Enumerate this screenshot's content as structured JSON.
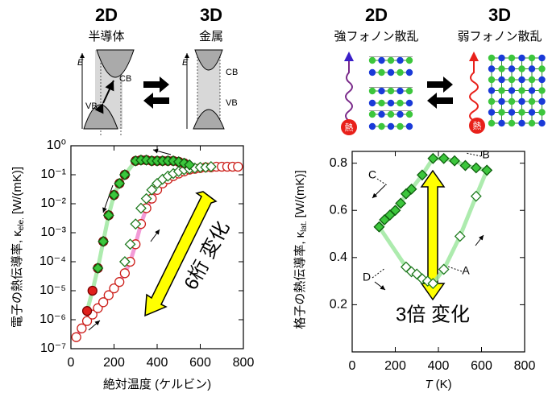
{
  "header": {
    "left": [
      "2D",
      "半導体",
      "3D",
      "金属"
    ],
    "right": [
      "2D",
      "強フォノン散乱",
      "3D",
      "弱フォノン散乱"
    ]
  },
  "band_labels": [
    "E",
    "CB",
    "VB",
    "E",
    "CB",
    "VB"
  ],
  "heat_labels": [
    "熱",
    "熱"
  ],
  "chart_data": [
    {
      "type": "scatter",
      "yscale": "log",
      "xlabel": "絶対温度 (ケルビン)",
      "ylabel": "電子の熱伝導率, κ",
      "ylabel_sub": "ele.",
      "ylabel_unit": "[W/(mK)]",
      "xlim": [
        0,
        800
      ],
      "xticks": [
        0,
        200,
        400,
        600,
        800
      ],
      "ylim": [
        1e-07,
        1
      ],
      "yticks": [
        {
          "value": 1e-07,
          "label": "10⁻⁷"
        },
        {
          "value": 1e-06,
          "label": "10⁻⁶"
        },
        {
          "value": 1e-05,
          "label": "10⁻⁵"
        },
        {
          "value": 0.0001,
          "label": "10⁻⁴"
        },
        {
          "value": 0.001,
          "label": "10⁻³"
        },
        {
          "value": 0.01,
          "label": "10⁻²"
        },
        {
          "value": 0.1,
          "label": "10⁻¹"
        },
        {
          "value": 1,
          "label": "10⁰"
        }
      ],
      "annotations": [
        "6桁 変化"
      ],
      "series": [
        {
          "marker": "circle",
          "color": "#cc1f1a",
          "fill": "#ffffff",
          "line_color": "#f08ad0",
          "x": [
            25,
            50,
            75,
            100,
            125,
            150,
            175,
            200,
            225,
            250,
            275,
            300,
            325,
            350,
            375,
            400,
            425,
            450,
            475,
            500,
            525,
            550,
            575,
            600,
            625,
            650,
            675,
            700,
            725,
            750,
            775
          ],
          "values": [
            2.5e-07,
            5e-07,
            9e-07,
            1.5e-06,
            2.5e-06,
            4e-06,
            7e-06,
            1.2e-05,
            2e-05,
            4e-05,
            0.0001,
            0.0004,
            0.002,
            0.007,
            0.015,
            0.03,
            0.05,
            0.07,
            0.09,
            0.11,
            0.13,
            0.15,
            0.16,
            0.17,
            0.18,
            0.18,
            0.19,
            0.19,
            0.19,
            0.19,
            0.19
          ]
        },
        {
          "marker": "diamond",
          "color": "#1e7a1e",
          "fill": "#ffffff",
          "x": [
            250,
            275,
            300,
            325,
            350,
            375,
            400,
            425,
            450,
            475,
            500,
            525,
            550,
            575,
            600,
            625,
            650
          ],
          "values": [
            0.0001,
            0.0004,
            0.002,
            0.007,
            0.015,
            0.03,
            0.05,
            0.07,
            0.09,
            0.11,
            0.13,
            0.15,
            0.16,
            0.17,
            0.18,
            0.18,
            0.19
          ]
        },
        {
          "marker": "circle",
          "color": "#7a0000",
          "fill": "#e0201b",
          "line_color": "#9fe8a0",
          "x": [
            75,
            100,
            125,
            150,
            175,
            200,
            225,
            250,
            300,
            325,
            350,
            375,
            400,
            425,
            450,
            475,
            500,
            525
          ],
          "values": [
            2e-06,
            1e-05,
            6e-05,
            0.0005,
            0.004,
            0.02,
            0.05,
            0.1,
            0.3,
            0.32,
            0.32,
            0.3,
            0.3,
            0.3,
            0.3,
            0.3,
            0.28,
            0.25
          ]
        },
        {
          "marker": "diamond",
          "color": "#0f5f0f",
          "fill": "#3cc63c",
          "x": [
            125,
            150,
            175,
            200,
            225,
            250,
            300,
            325,
            350,
            375,
            400,
            425,
            450,
            475,
            500,
            525,
            550
          ],
          "values": [
            6e-05,
            0.0005,
            0.004,
            0.02,
            0.05,
            0.1,
            0.3,
            0.32,
            0.32,
            0.3,
            0.3,
            0.3,
            0.3,
            0.3,
            0.28,
            0.25,
            0.22
          ]
        }
      ]
    },
    {
      "type": "scatter",
      "xlabel": "T",
      "xlabel_unit": "(K)",
      "ylabel": "格子の熱伝導率, κ",
      "ylabel_sub": "lat.",
      "ylabel_unit": "[W/(mK)]",
      "xlim": [
        0,
        800
      ],
      "xticks": [
        0,
        200,
        400,
        600,
        800
      ],
      "ylim": [
        0,
        0.85
      ],
      "yticks": [
        0.2,
        0.4,
        0.6,
        0.8
      ],
      "annotations": [
        "3倍 変化",
        "A",
        "B",
        "C",
        "D"
      ],
      "series": [
        {
          "marker": "diamond",
          "color": "#1e7a1e",
          "fill": "#ffffff",
          "line_color": "#9fe8a0",
          "x": [
            125,
            250,
            275,
            300,
            325,
            350,
            375,
            425,
            500,
            575,
            625
          ],
          "values": [
            0.53,
            0.36,
            0.34,
            0.33,
            0.31,
            0.3,
            0.29,
            0.35,
            0.49,
            0.66,
            0.77
          ]
        },
        {
          "marker": "diamond",
          "color": "#0f5f0f",
          "fill": "#3cc63c",
          "line_color": "#9fe8a0",
          "x": [
            125,
            150,
            175,
            200,
            225,
            250,
            275,
            325,
            375,
            425,
            475,
            525,
            575,
            625
          ],
          "values": [
            0.53,
            0.56,
            0.58,
            0.6,
            0.63,
            0.67,
            0.69,
            0.75,
            0.82,
            0.82,
            0.81,
            0.79,
            0.78,
            0.77
          ]
        }
      ]
    }
  ]
}
